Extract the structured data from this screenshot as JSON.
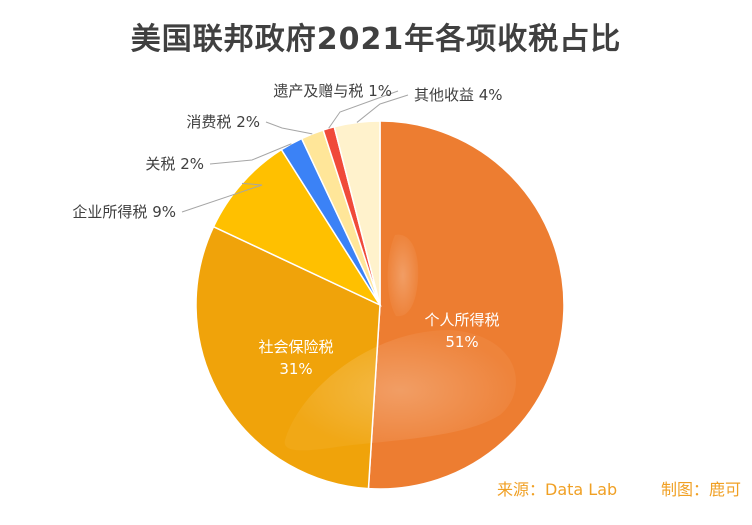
{
  "chart_data": {
    "type": "pie",
    "title": "美国联邦政府2021年各项收税占比",
    "categories": [
      "个人所得税",
      "社会保险税",
      "企业所得税",
      "关税",
      "消费税",
      "遗产及赠与税",
      "其他收益"
    ],
    "values": [
      51,
      31,
      9,
      2,
      2,
      1,
      4
    ],
    "colors": [
      "#ed7d31",
      "#f0a30a",
      "#ffc000",
      "#3b82f6",
      "#ffe699",
      "#f04a3a",
      "#fff2cc"
    ],
    "labels_outside": [
      "",
      "",
      "企业所得税 9%",
      "关税 2%",
      "消费税 2%",
      "遗产及赠与税 1%",
      "其他收益 4%"
    ],
    "labels_inside": [
      {
        "name": "个人所得税",
        "value": "51%"
      },
      {
        "name": "社会保险税",
        "value": "31%"
      }
    ]
  },
  "footer": {
    "source": "来源：Data Lab",
    "credit": "制图：鹿可"
  }
}
